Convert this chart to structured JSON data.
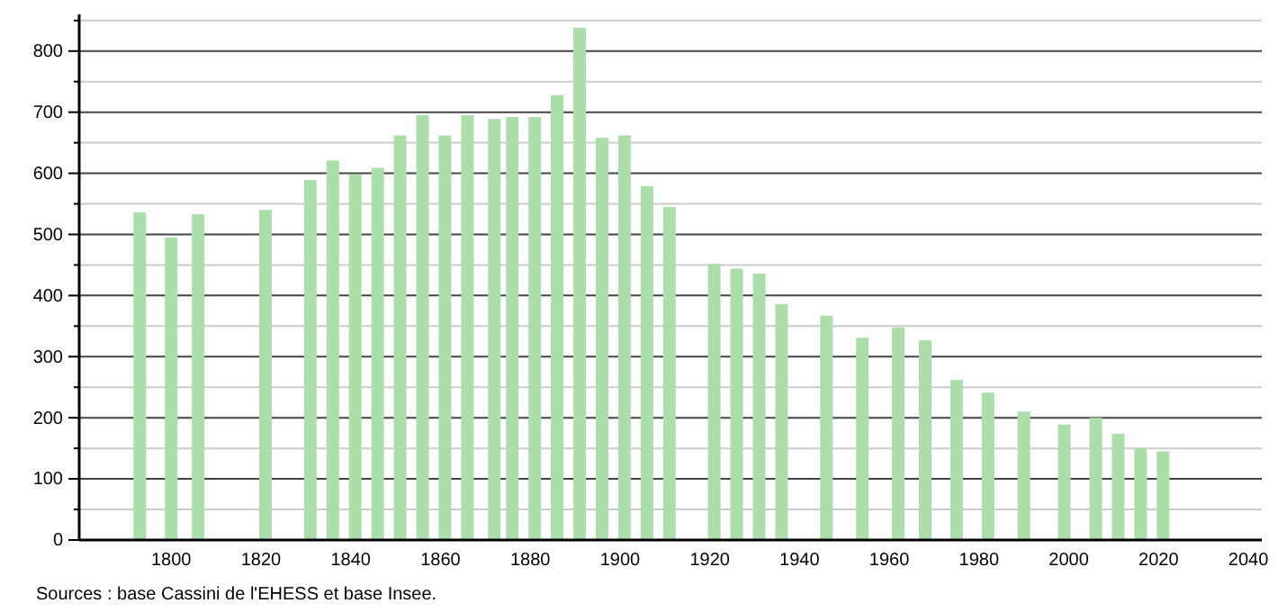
{
  "chart_data": {
    "type": "bar",
    "color": "#acdeac",
    "x": [
      1793,
      1800,
      1806,
      1821,
      1831,
      1836,
      1841,
      1846,
      1851,
      1856,
      1861,
      1866,
      1872,
      1876,
      1881,
      1886,
      1891,
      1896,
      1901,
      1906,
      1911,
      1921,
      1926,
      1931,
      1936,
      1946,
      1954,
      1962,
      1968,
      1975,
      1982,
      1990,
      1999,
      2006,
      2011,
      2016,
      2021
    ],
    "values": [
      536,
      495,
      533,
      540,
      589,
      621,
      598,
      609,
      662,
      695,
      662,
      695,
      689,
      692,
      692,
      728,
      838,
      658,
      662,
      579,
      545,
      452,
      444,
      436,
      386,
      367,
      331,
      348,
      327,
      262,
      241,
      210,
      189,
      200,
      174,
      150,
      145
    ],
    "xlim": [
      1779.5,
      2043
    ],
    "xticks": [
      1800,
      1820,
      1840,
      1860,
      1880,
      1900,
      1920,
      1940,
      1960,
      1980,
      2000,
      2020,
      2040
    ],
    "ylim": [
      0,
      860
    ],
    "yticks": [
      0,
      {
        "value": 50,
        "label": null
      },
      100,
      {
        "value": 150,
        "label": null
      },
      200,
      {
        "value": 250,
        "label": null
      },
      300,
      {
        "value": 350,
        "label": null
      },
      400,
      {
        "value": 450,
        "label": null
      },
      500,
      {
        "value": 550,
        "label": null
      },
      600,
      {
        "value": 650,
        "label": null
      },
      700,
      {
        "value": 750,
        "label": null
      },
      800,
      {
        "value": 850,
        "label": null
      }
    ],
    "grid": "y",
    "annotations": [
      "Sources : base Cassini de l'EHESS et base Insee."
    ]
  }
}
